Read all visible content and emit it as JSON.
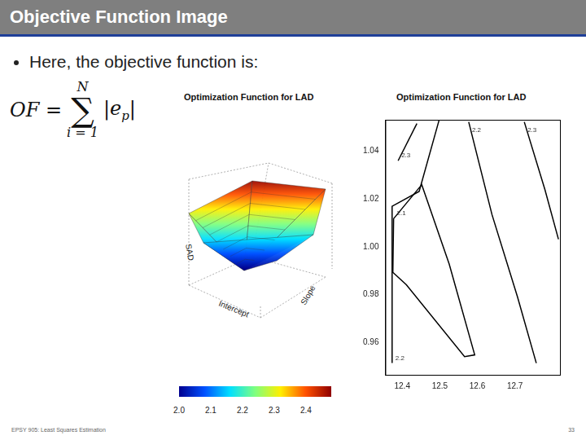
{
  "slide": {
    "title": "Objective Function Image",
    "bullet": "Here, the objective function is:",
    "formula": {
      "lhs": "OF =",
      "sum": "∑",
      "upper": "N",
      "lower": "i = 1",
      "body": "e",
      "body_subscript": "p",
      "delimiter": "|"
    },
    "footer": "EPSY 905: Least Squares Estimation",
    "page_number": 33
  },
  "surface_plot": {
    "title": "Optimization Function for LAD",
    "axis_labels": {
      "z": "SAD",
      "x": "Intercept",
      "y": "Slope"
    },
    "colorbar": {
      "range": [
        2.0,
        2.48
      ],
      "ticks": [
        {
          "value": 2,
          "label": "2.0"
        },
        2.1,
        2.2,
        2.3,
        2.4
      ]
    }
  },
  "chart_data": {
    "type": "line",
    "title": "Optimization Function for LAD",
    "color": "#000000",
    "grid": false,
    "xlim": [
      12.355,
      12.82
    ],
    "xticks": [
      12.4,
      12.5,
      12.6,
      12.7
    ],
    "ylim": [
      0.9465,
      1.053
    ],
    "yticks": [
      0.96,
      0.98,
      {
        "value": 1,
        "label": "1.00"
      },
      1.02,
      1.04
    ],
    "series": [
      {
        "name": "2.1",
        "x": [
          12.377,
          12.452,
          12.525,
          12.593,
          12.566,
          12.411,
          12.375,
          12.377
        ],
        "y": [
          1.0117,
          1.0259,
          0.9928,
          0.9548,
          0.9541,
          0.9841,
          0.9893,
          1.0117
        ]
      },
      {
        "name": "2.2",
        "x": [
          12.373,
          12.373,
          12.445,
          12.498
        ],
        "y": [
          0.9514,
          1.0169,
          1.0231,
          1.0528
        ]
      },
      {
        "name": "2.2",
        "x": [
          12.577,
          12.639,
          12.707,
          12.757
        ],
        "y": [
          1.0521,
          1.0134,
          0.979,
          0.9514
        ]
      },
      {
        "name": "2.3",
        "x": [
          12.389,
          12.439
        ],
        "y": [
          1.0359,
          1.0514
        ]
      },
      {
        "name": "2.3",
        "x": [
          12.725,
          12.78,
          12.816
        ],
        "y": [
          1.0521,
          1.0238,
          1.0031
        ]
      }
    ]
  }
}
